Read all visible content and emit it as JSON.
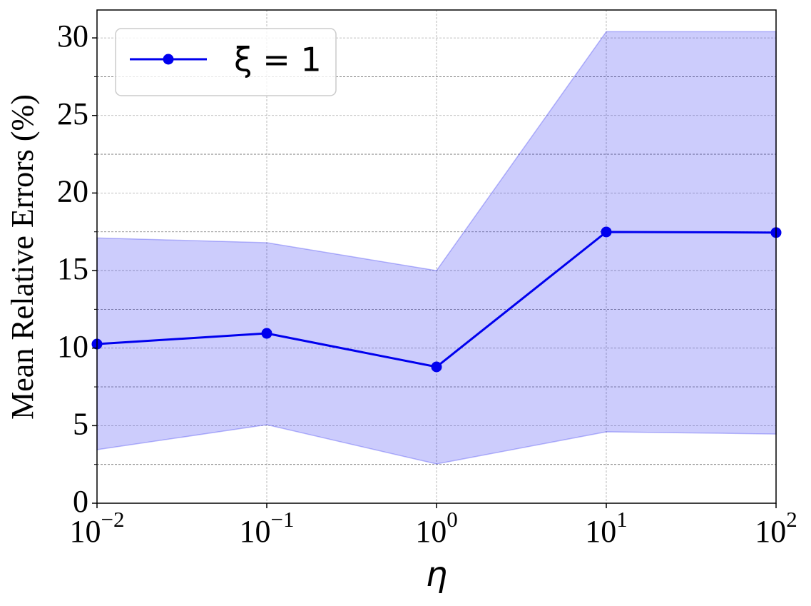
{
  "chart_data": {
    "type": "line",
    "x": [
      0.01,
      0.1,
      1,
      10,
      100
    ],
    "series": [
      {
        "name": "ξ = 1",
        "color": "#0000ee",
        "values": [
          10.26,
          10.95,
          8.79,
          17.49,
          17.45
        ],
        "lower": [
          3.45,
          5.06,
          2.53,
          4.6,
          4.46
        ],
        "upper": [
          17.1,
          16.8,
          15.0,
          30.4,
          30.4
        ]
      }
    ],
    "xlabel": "η",
    "ylabel": "Mean Relative Errors (%)",
    "xscale": "log",
    "xlim": [
      0.01,
      100
    ],
    "xticks": [
      {
        "value": 0.01,
        "label": "10",
        "exponent": "−2"
      },
      {
        "value": 0.1,
        "label": "10",
        "exponent": "−1"
      },
      {
        "value": 1,
        "label": "10",
        "exponent": "0"
      },
      {
        "value": 10,
        "label": "10",
        "exponent": "1"
      },
      {
        "value": 100,
        "label": "10",
        "exponent": "2"
      }
    ],
    "ylim": [
      0,
      31.8
    ],
    "yticks": [
      0,
      5,
      10,
      15,
      20,
      25,
      30
    ],
    "yminorticks": [
      2.5,
      7.5,
      12.5,
      17.5,
      22.5,
      27.5
    ],
    "grid": true,
    "legend": "upper left"
  }
}
